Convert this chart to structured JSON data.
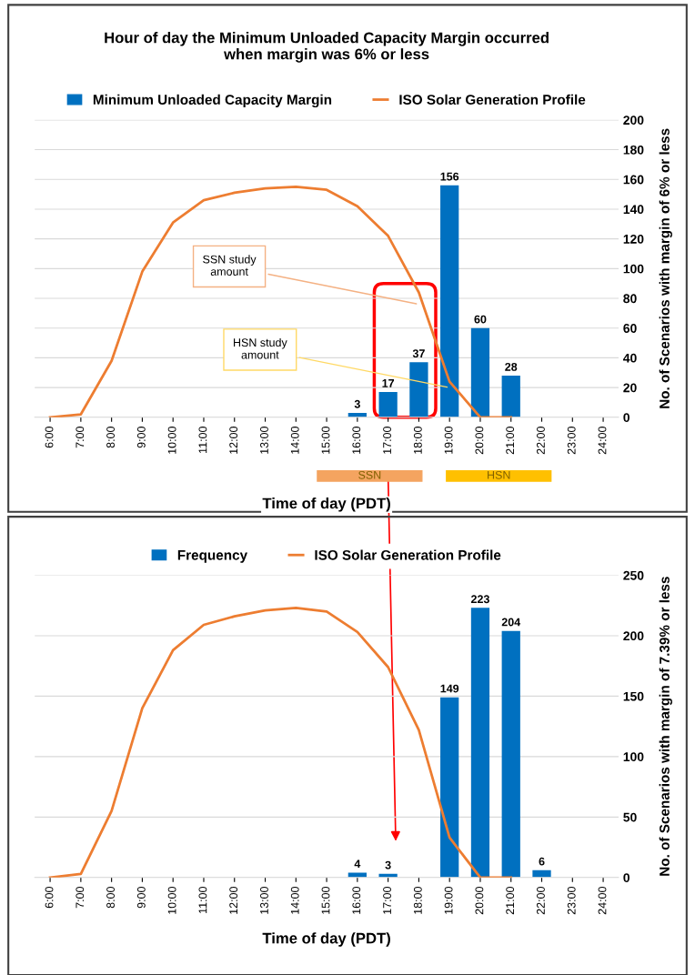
{
  "chart_data": [
    {
      "type": "bar",
      "title": "Hour of day the Minimum Unloaded Capacity Margin occurred\nwhen margin was 6% or less",
      "xlabel": "Time of day (PDT)",
      "ylabel": "No. of Scenarios with margin of 6% or less",
      "categories": [
        "6:00",
        "7:00",
        "8:00",
        "9:00",
        "10:00",
        "11:00",
        "12:00",
        "13:00",
        "14:00",
        "15:00",
        "16:00",
        "17:00",
        "18:00",
        "19:00",
        "20:00",
        "21:00",
        "22:00",
        "23:00",
        "24:00"
      ],
      "series": [
        {
          "name": "Minimum Unloaded Capacity Margin",
          "color": "#0070c0",
          "values": [
            null,
            null,
            null,
            null,
            null,
            null,
            null,
            null,
            null,
            null,
            3,
            17,
            37,
            156,
            60,
            28,
            null,
            null,
            null
          ],
          "value_labels": [
            null,
            null,
            null,
            null,
            null,
            null,
            null,
            null,
            null,
            null,
            "3",
            "17",
            "37",
            "156",
            "60",
            "28",
            null,
            null,
            null
          ]
        },
        {
          "name": "ISO Solar Generation Profile",
          "type": "line",
          "color": "#ed7d31",
          "values": [
            0,
            2,
            38,
            98,
            131,
            146,
            151,
            154,
            155,
            153,
            142,
            122,
            84,
            24,
            0,
            0,
            null,
            null,
            null
          ]
        }
      ],
      "ylim": [
        0,
        200
      ],
      "yticks": [
        0,
        20,
        40,
        60,
        80,
        100,
        120,
        140,
        160,
        180,
        200
      ],
      "grid": "y",
      "legend": "top",
      "marker": "none",
      "annotations": [
        {
          "text": "SSN study amount",
          "x": "18:00",
          "y": 76
        },
        {
          "text": "HSN study amount",
          "x": "19:00",
          "y": 20
        },
        "SSN",
        "HSN"
      ]
    },
    {
      "type": "bar",
      "xlabel": "Time of day (PDT)",
      "ylabel": "No. of Scenarios with margin of 7.39% or less",
      "categories": [
        "6:00",
        "7:00",
        "8:00",
        "9:00",
        "10:00",
        "11:00",
        "12:00",
        "13:00",
        "14:00",
        "15:00",
        "16:00",
        "17:00",
        "18:00",
        "19:00",
        "20:00",
        "21:00",
        "22:00",
        "23:00",
        "24:00"
      ],
      "series": [
        {
          "name": "Frequency",
          "color": "#0070c0",
          "values": [
            null,
            null,
            null,
            null,
            null,
            null,
            null,
            null,
            null,
            null,
            4,
            3,
            null,
            149,
            223,
            204,
            6,
            null,
            null
          ],
          "value_labels": [
            null,
            null,
            null,
            null,
            null,
            null,
            null,
            null,
            null,
            null,
            "4",
            "3",
            null,
            "149",
            "223",
            "204",
            "6",
            null,
            null
          ]
        },
        {
          "name": "ISO Solar Generation Profile",
          "type": "line",
          "color": "#ed7d31",
          "values": [
            0,
            3,
            55,
            140,
            188,
            209,
            216,
            221,
            223,
            220,
            203,
            174,
            122,
            33,
            0,
            0,
            null,
            null,
            null
          ]
        }
      ],
      "ylim": [
        0,
        250
      ],
      "yticks": [
        0,
        50,
        100,
        150,
        200,
        250
      ],
      "grid": "y",
      "legend": "top",
      "marker": "none"
    }
  ]
}
